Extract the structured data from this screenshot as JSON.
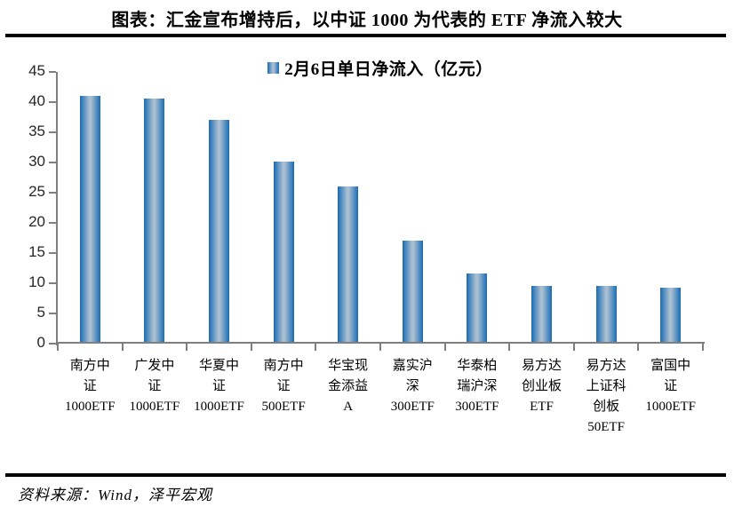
{
  "title": "图表：汇金宣布增持后，以中证 1000 为代表的 ETF 净流入较大",
  "footer": {
    "source": "资料来源：Wind，泽平宏观"
  },
  "colors": {
    "bar_dark": "#1b67ae",
    "bar_mid": "#2e79ba",
    "bar_light": "#a9bed1",
    "axis": "#7f7f7f",
    "rule": "#000000"
  },
  "chart_data": {
    "type": "bar",
    "title": "",
    "legend": "2月6日单日净流入（亿元）",
    "legend_position": "top-center",
    "xlabel": "",
    "ylabel": "",
    "ylim": [
      0,
      45
    ],
    "yticks": [
      0,
      5,
      10,
      15,
      20,
      25,
      30,
      35,
      40,
      45
    ],
    "grid": false,
    "categories": [
      "南方中证1000ETF",
      "广发中证1000ETF",
      "华夏中证1000ETF",
      "南方中证500ETF",
      "华宝现金添益A",
      "嘉实沪深300ETF",
      "华泰柏瑞沪深300ETF",
      "易方达创业板ETF",
      "易方达上证科创板50ETF",
      "富国中证1000ETF"
    ],
    "category_label_lines": [
      [
        "南方中",
        "证",
        "1000ETF"
      ],
      [
        "广发中",
        "证",
        "1000ETF"
      ],
      [
        "华夏中",
        "证",
        "1000ETF"
      ],
      [
        "南方中",
        "证",
        "500ETF"
      ],
      [
        "华宝现",
        "金添益",
        "A"
      ],
      [
        "嘉实沪",
        "深",
        "300ETF"
      ],
      [
        "华泰柏",
        "瑞沪深",
        "300ETF"
      ],
      [
        "易方达",
        "创业板",
        "ETF"
      ],
      [
        "易方达",
        "上证科",
        "创板",
        "50ETF"
      ],
      [
        "富国中",
        "证",
        "1000ETF"
      ]
    ],
    "values": [
      41.0,
      40.6,
      37.0,
      30.2,
      26.0,
      17.1,
      11.6,
      9.6,
      9.6,
      9.3
    ]
  }
}
